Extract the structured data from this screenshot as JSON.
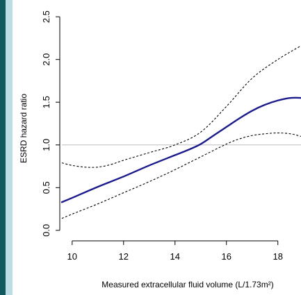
{
  "colors": {
    "frame_dark": "#0f5a5e",
    "frame_light": "#bcdde3",
    "curve": "#1a1a8c",
    "ci": "#000000",
    "reference_line": "#bdbdbd"
  },
  "chart_data": {
    "type": "line",
    "title": "",
    "xlabel": "Measured extracellular fluid volume (L/1.73m²)",
    "ylabel": "ESRD hazard ratio",
    "xlim": [
      9.6,
      18.9
    ],
    "ylim": [
      -0.05,
      2.55
    ],
    "x_ticks": [
      10,
      12,
      14,
      16,
      18
    ],
    "y_ticks": [
      0.0,
      0.5,
      1.0,
      1.5,
      2.0,
      2.5
    ],
    "x_tick_labels": [
      "10",
      "12",
      "14",
      "16",
      "18"
    ],
    "y_tick_labels": [
      "0.0",
      "0.5",
      "1.0",
      "1.5",
      "2.0",
      "2.5"
    ],
    "reference_line": 1.0,
    "grid": false,
    "legend": "none",
    "series": [
      {
        "role": "estimate",
        "style": "solid",
        "x": [
          9.6,
          10,
          11,
          12,
          13,
          14,
          14.5,
          15,
          15.5,
          16,
          16.5,
          17,
          17.5,
          18,
          18.5,
          18.9
        ],
        "y": [
          0.33,
          0.38,
          0.51,
          0.63,
          0.76,
          0.88,
          0.94,
          1.01,
          1.11,
          1.21,
          1.31,
          1.4,
          1.47,
          1.52,
          1.55,
          1.55
        ]
      },
      {
        "role": "upper_ci",
        "style": "dashed",
        "x": [
          9.6,
          10,
          10.5,
          11,
          11.5,
          12,
          13,
          14,
          15,
          16,
          17,
          18,
          18.9
        ],
        "y": [
          0.79,
          0.76,
          0.74,
          0.74,
          0.77,
          0.82,
          0.91,
          1.0,
          1.15,
          1.45,
          1.78,
          2.0,
          2.16
        ]
      },
      {
        "role": "lower_ci",
        "style": "dashed",
        "x": [
          9.6,
          10,
          11,
          12,
          13,
          14,
          15,
          16,
          16.5,
          17,
          17.5,
          18,
          18.5,
          18.9
        ],
        "y": [
          0.14,
          0.19,
          0.31,
          0.44,
          0.57,
          0.71,
          0.86,
          1.01,
          1.07,
          1.11,
          1.13,
          1.14,
          1.13,
          1.1
        ]
      }
    ]
  }
}
